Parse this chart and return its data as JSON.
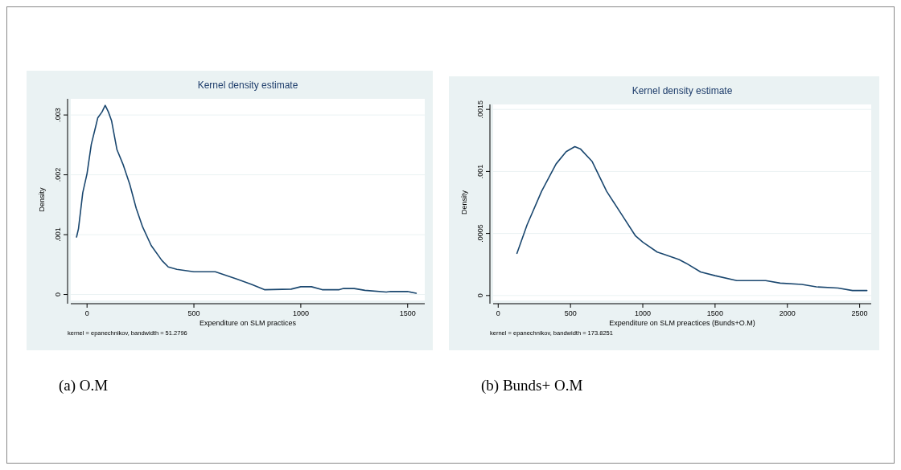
{
  "chart_data": [
    {
      "type": "line",
      "title": "Kernel density estimate",
      "xlabel": "Expenditure on SLM practices",
      "ylabel": "Density",
      "annotations": [
        "kernel = epanechnikov, bandwidth = 51.2796",
        "(a)  O.M"
      ],
      "grid": "y",
      "xlim": [
        -76,
        1580
      ],
      "ylim": [
        -0.0001,
        0.00327
      ],
      "xticks": [
        0,
        500,
        1000,
        1500
      ],
      "yticks": [
        0,
        {
          "value": 0.001,
          "label": ".001"
        },
        {
          "value": 0.002,
          "label": ".002"
        },
        {
          "value": 0.003,
          "label": ".003"
        }
      ],
      "series": [
        {
          "color": "#1a476f",
          "x": [
            -49,
            -40,
            -20,
            0,
            20,
            40,
            50,
            70,
            85,
            100,
            115,
            140,
            170,
            200,
            230,
            260,
            300,
            350,
            380,
            420,
            500,
            600,
            700,
            770,
            830,
            955,
            1000,
            1050,
            1100,
            1180,
            1200,
            1250,
            1300,
            1400,
            1420,
            1500,
            1540
          ],
          "values": [
            0.00096,
            0.0011,
            0.0017,
            0.00202,
            0.00251,
            0.0028,
            0.00295,
            0.00305,
            0.00316,
            0.00305,
            0.0029,
            0.00242,
            0.00216,
            0.00184,
            0.00144,
            0.00113,
            0.00082,
            0.00057,
            0.00046,
            0.00042,
            0.00038,
            0.00038,
            0.00026,
            0.00017,
            8e-05,
            9e-05,
            0.00013,
            0.00013,
            8e-05,
            8e-05,
            0.0001,
            0.0001,
            7e-05,
            4e-05,
            5e-05,
            5e-05,
            2e-05
          ]
        }
      ]
    },
    {
      "type": "line",
      "title": "Kernel density estimate",
      "xlabel": "Expenditure on SLM preactices (Bunds+O.M)",
      "ylabel": "Density",
      "annotations": [
        "kernel = epanechnikov, bandwidth = 173.8251",
        "(b) Bunds+ O.M"
      ],
      "grid": "y",
      "xlim": [
        -35,
        2580
      ],
      "ylim": [
        -4e-05,
        0.00154
      ],
      "xticks": [
        0,
        500,
        1000,
        1500,
        2000,
        2500
      ],
      "yticks": [
        0,
        {
          "value": 0.0005,
          "label": ".0005"
        },
        {
          "value": 0.001,
          "label": ".001"
        },
        {
          "value": 0.0015,
          "label": ".0015"
        }
      ],
      "series": [
        {
          "color": "#1a476f",
          "x": [
            130,
            200,
            300,
            400,
            470,
            530,
            570,
            650,
            750,
            850,
            950,
            1000,
            1100,
            1150,
            1250,
            1300,
            1400,
            1500,
            1650,
            1850,
            1950,
            2100,
            2200,
            2350,
            2450,
            2550
          ],
          "values": [
            0.00034,
            0.00057,
            0.00084,
            0.00106,
            0.00116,
            0.0012,
            0.00118,
            0.00108,
            0.00084,
            0.00066,
            0.00048,
            0.00043,
            0.00035,
            0.00033,
            0.00029,
            0.00026,
            0.00019,
            0.00016,
            0.00012,
            0.00012,
            0.0001,
            9e-05,
            7e-05,
            6e-05,
            4e-05,
            4e-05
          ]
        }
      ]
    }
  ]
}
